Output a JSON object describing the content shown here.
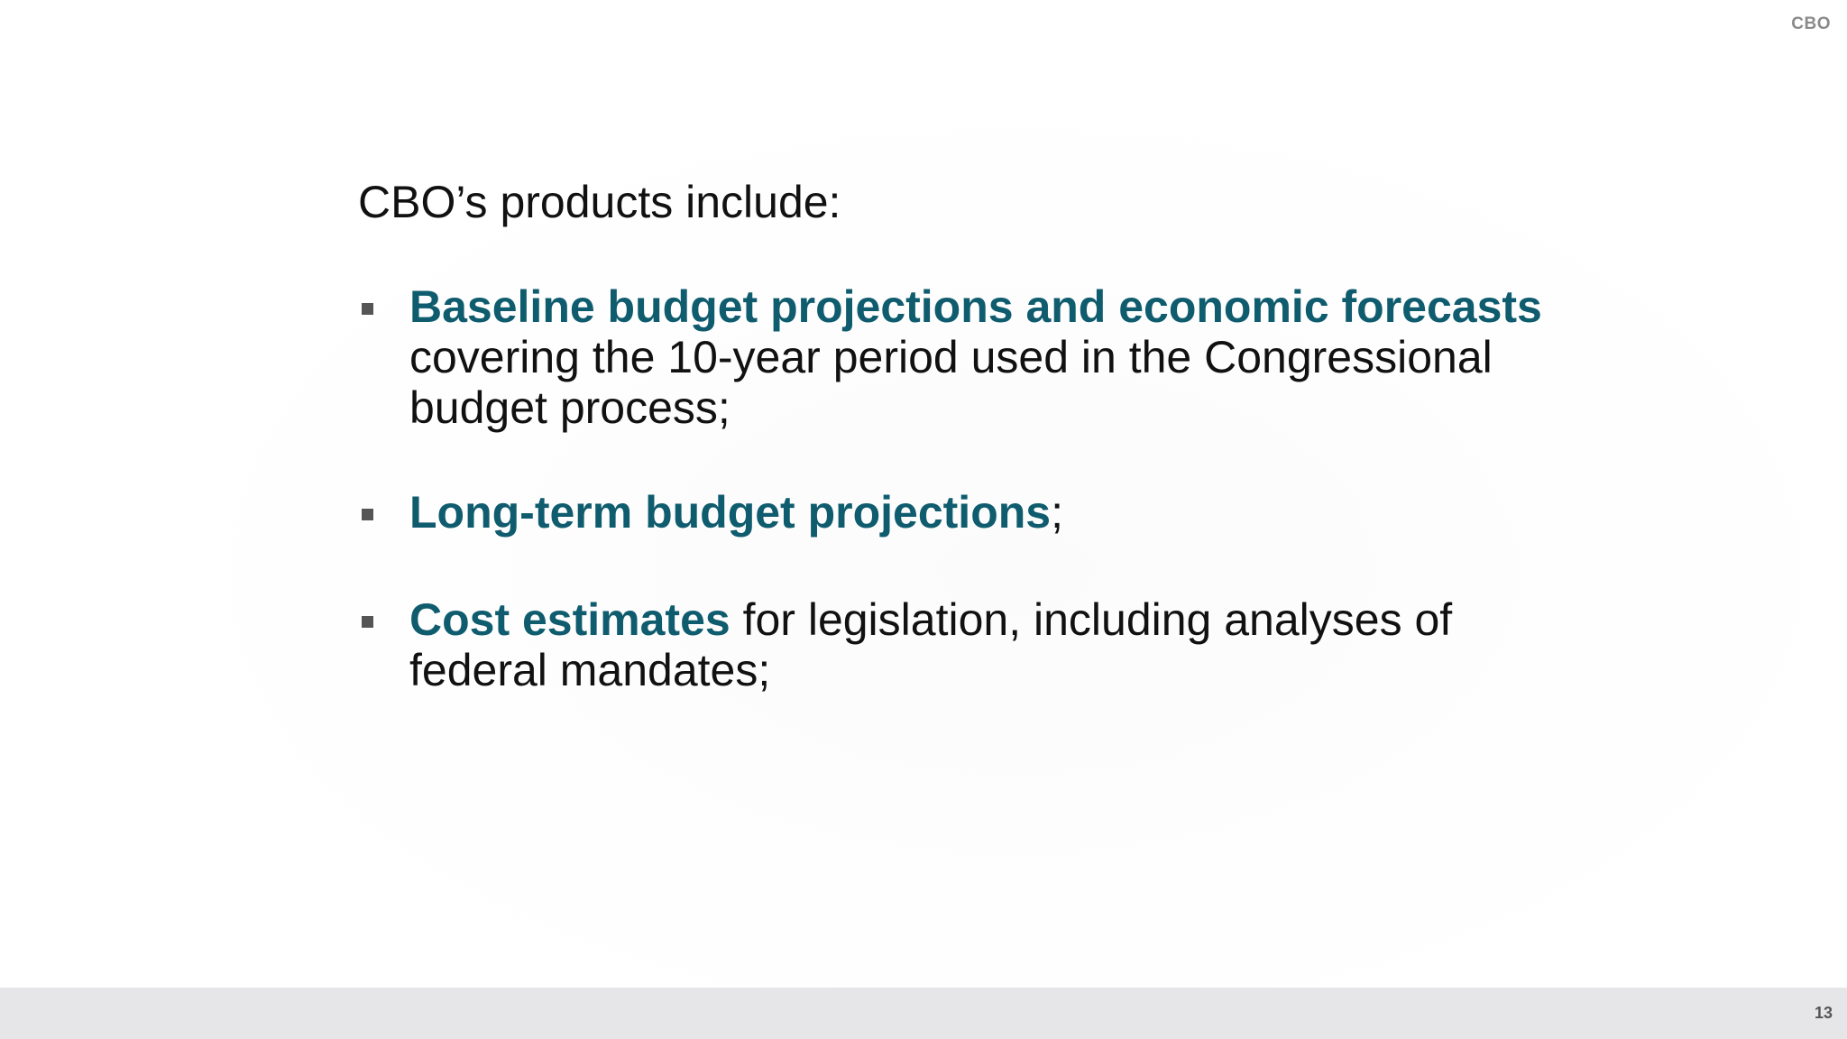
{
  "header": {
    "logo_text": "CBO"
  },
  "slide": {
    "lead": "CBO’s products include:",
    "bullets": [
      {
        "highlight": "Baseline budget projections and economic forecasts",
        "rest": " covering the 10-year period used in the Congressional budget process;"
      },
      {
        "highlight": "Long-term budget projections",
        "rest": ";"
      },
      {
        "highlight": "Cost estimates",
        "rest": " for legislation, including analyses of federal mandates;"
      }
    ]
  },
  "footer": {
    "page_number": "13"
  },
  "colors": {
    "highlight": "#0f5c6e",
    "footer_bar": "#e6e6e8"
  }
}
